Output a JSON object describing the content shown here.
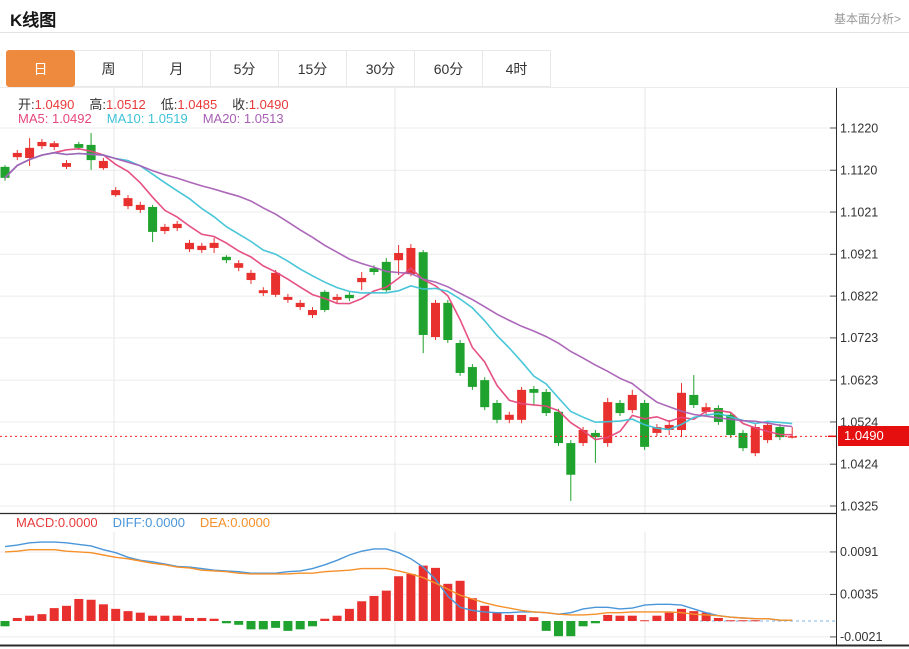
{
  "header": {
    "title": "K线图",
    "link_label": "基本面分析>"
  },
  "tabs": {
    "items": [
      "日",
      "周",
      "月",
      "5分",
      "15分",
      "30分",
      "60分",
      "4时"
    ],
    "active_index": 0
  },
  "main_legend": {
    "ohlc": [
      {
        "label": "开:",
        "value": "1.0490"
      },
      {
        "label": "高:",
        "value": "1.0512"
      },
      {
        "label": "低:",
        "value": "1.0485"
      },
      {
        "label": "收:",
        "value": "1.0490"
      }
    ],
    "ohlc_value_color": "#e83a3a",
    "ma": [
      {
        "label": "MA5:",
        "value": "1.0492",
        "color": "#e5487c"
      },
      {
        "label": "MA10:",
        "value": "1.0519",
        "color": "#3fc3d6"
      },
      {
        "label": "MA20:",
        "value": "1.0513",
        "color": "#a85fb5"
      }
    ]
  },
  "macd_legend": [
    {
      "label": "MACD:",
      "value": "0.0000",
      "color": "#e83a3a"
    },
    {
      "label": "DIFF:",
      "value": "0.0000",
      "color": "#4a96d9"
    },
    {
      "label": "DEA:",
      "value": "0.0000",
      "color": "#f5902a"
    }
  ],
  "price_tag": {
    "value": "1.0490"
  },
  "colors": {
    "up": "#e8312f",
    "down": "#1fa32e",
    "ma5": "#e5487c",
    "ma10": "#3fc3d6",
    "ma20": "#a85fb5",
    "diff": "#4a96d9",
    "dea": "#f5902a",
    "grid": "#ececec",
    "axis": "#2b2b2b",
    "price_line": "#ff2222",
    "price_tag_bg": "#e50f0f",
    "tab_active_bg": "#ee8a3d"
  },
  "chart_data": {
    "type": "candlestick+macd",
    "title": "K线图 (日K)",
    "main_panel": {
      "y_ticks": [
        "1.1220",
        "1.1120",
        "1.1021",
        "1.0921",
        "1.0822",
        "1.0723",
        "1.0623",
        "1.0524",
        "1.0424",
        "1.0325"
      ],
      "ylim": [
        1.0325,
        1.122
      ],
      "current_price": 1.049,
      "ma_periods": [
        5,
        10,
        20
      ],
      "candles_ohlc": [
        [
          1.1128,
          1.1132,
          1.1095,
          1.1102
        ],
        [
          1.1151,
          1.1168,
          1.1144,
          1.1161
        ],
        [
          1.1149,
          1.1196,
          1.113,
          1.1173
        ],
        [
          1.1177,
          1.1194,
          1.117,
          1.1187
        ],
        [
          1.1175,
          1.1189,
          1.1168,
          1.1184
        ],
        [
          1.1128,
          1.1144,
          1.1123,
          1.1137
        ],
        [
          1.1182,
          1.1187,
          1.1168,
          1.1173
        ],
        [
          1.118,
          1.1208,
          1.1121,
          1.1144
        ],
        [
          1.1125,
          1.1149,
          1.1121,
          1.1142
        ],
        [
          1.1061,
          1.108,
          1.1057,
          1.1073
        ],
        [
          1.1035,
          1.1061,
          1.1028,
          1.1054
        ],
        [
          1.1026,
          1.1045,
          1.1019,
          1.1038
        ],
        [
          1.1033,
          1.1038,
          1.095,
          1.0974
        ],
        [
          1.0976,
          1.0993,
          1.0969,
          1.0986
        ],
        [
          1.0983,
          1.1,
          1.0976,
          1.0993
        ],
        [
          1.0933,
          1.0955,
          1.0926,
          1.0948
        ],
        [
          1.0931,
          1.0948,
          1.0924,
          1.0941
        ],
        [
          1.0936,
          1.096,
          1.0924,
          1.0948
        ],
        [
          1.0915,
          1.0919,
          1.09,
          1.0907
        ],
        [
          1.0889,
          1.0907,
          1.0881,
          1.09
        ],
        [
          1.086,
          1.0884,
          1.0851,
          1.0877
        ],
        [
          1.0829,
          1.0843,
          1.0822,
          1.0836
        ],
        [
          1.0825,
          1.0884,
          1.082,
          1.0877
        ],
        [
          1.0813,
          1.0827,
          1.0806,
          1.082
        ],
        [
          1.0796,
          1.0813,
          1.0789,
          1.0806
        ],
        [
          1.0777,
          1.0796,
          1.077,
          1.0789
        ],
        [
          1.0832,
          1.0836,
          1.0784,
          1.0789
        ],
        [
          1.0813,
          1.0827,
          1.0806,
          1.082
        ],
        [
          1.0825,
          1.0832,
          1.081,
          1.0817
        ],
        [
          1.0855,
          1.0879,
          1.0836,
          1.0865
        ],
        [
          1.0888,
          1.0895,
          1.0872,
          1.0879
        ],
        [
          1.0903,
          1.0912,
          1.0832,
          1.0836
        ],
        [
          1.0907,
          1.0943,
          1.0872,
          1.0924
        ],
        [
          1.0874,
          1.0945,
          1.0869,
          1.0936
        ],
        [
          1.0926,
          1.0931,
          1.0687,
          1.073
        ],
        [
          1.0725,
          1.0813,
          1.0718,
          1.0806
        ],
        [
          1.0806,
          1.0813,
          1.0711,
          1.0718
        ],
        [
          1.0711,
          1.0718,
          1.0633,
          1.064
        ],
        [
          1.0654,
          1.0661,
          1.06,
          1.0607
        ],
        [
          1.0623,
          1.063,
          1.0552,
          1.0559
        ],
        [
          1.0569,
          1.0576,
          1.0521,
          1.0529
        ],
        [
          1.0529,
          1.0548,
          1.0521,
          1.0541
        ],
        [
          1.0529,
          1.0607,
          1.0521,
          1.06
        ],
        [
          1.0602,
          1.0609,
          1.0564,
          1.0593
        ],
        [
          1.0595,
          1.0602,
          1.0538,
          1.0545
        ],
        [
          1.0548,
          1.0555,
          1.0467,
          1.0474
        ],
        [
          1.0474,
          1.0481,
          1.0337,
          1.0399
        ],
        [
          1.0474,
          1.0512,
          1.0467,
          1.0505
        ],
        [
          1.0498,
          1.0505,
          1.0427,
          1.0488
        ],
        [
          1.0474,
          1.0581,
          1.0465,
          1.0571
        ],
        [
          1.0569,
          1.0576,
          1.0538,
          1.0545
        ],
        [
          1.0552,
          1.06,
          1.0545,
          1.0588
        ],
        [
          1.0569,
          1.0576,
          1.0458,
          1.0465
        ],
        [
          1.0498,
          1.0519,
          1.0491,
          1.0512
        ],
        [
          1.0505,
          1.0529,
          1.0493,
          1.0517
        ],
        [
          1.0505,
          1.0616,
          1.0488,
          1.0593
        ],
        [
          1.0588,
          1.0635,
          1.0557,
          1.0564
        ],
        [
          1.0548,
          1.0569,
          1.0541,
          1.0559
        ],
        [
          1.0557,
          1.0564,
          1.0517,
          1.0524
        ],
        [
          1.0541,
          1.0548,
          1.0486,
          1.0493
        ],
        [
          1.0498,
          1.0505,
          1.0455,
          1.0462
        ],
        [
          1.045,
          1.0519,
          1.0443,
          1.0512
        ],
        [
          1.0481,
          1.0524,
          1.0474,
          1.0517
        ],
        [
          1.0512,
          1.0519,
          1.0481,
          1.0488
        ],
        [
          1.049,
          1.0512,
          1.0485,
          1.049
        ]
      ]
    },
    "macd_panel": {
      "y_ticks": [
        "0.0091",
        "0.0035",
        "-0.0021"
      ],
      "histogram": [
        -0.0007,
        0.0004,
        0.0007,
        0.0009,
        0.0017,
        0.002,
        0.0029,
        0.0028,
        0.0022,
        0.0016,
        0.0013,
        0.0011,
        0.0007,
        0.0007,
        0.0007,
        0.0004,
        0.0004,
        0.0003,
        -0.0003,
        -0.0005,
        -0.0011,
        -0.0011,
        -0.0009,
        -0.0013,
        -0.0011,
        -0.0007,
        0.0003,
        0.0007,
        0.0016,
        0.0026,
        0.0033,
        0.004,
        0.0059,
        0.0062,
        0.0073,
        0.007,
        0.0049,
        0.0053,
        0.003,
        0.002,
        0.0011,
        0.0008,
        0.0008,
        0.0005,
        -0.0013,
        -0.002,
        -0.002,
        -0.0007,
        -0.0003,
        0.0008,
        0.0007,
        0.0007,
        0.0001,
        0.0007,
        0.0011,
        0.0016,
        0.0013,
        0.0011,
        0.0004,
        0.0001,
        0.0001,
        0.0001,
        0.0,
        0.0,
        0.0
      ],
      "diff": [
        0.0098,
        0.01,
        0.0103,
        0.0104,
        0.0104,
        0.0103,
        0.0101,
        0.0099,
        0.0094,
        0.009,
        0.0084,
        0.008,
        0.0078,
        0.0075,
        0.0072,
        0.0071,
        0.0069,
        0.0067,
        0.0066,
        0.0065,
        0.0063,
        0.0063,
        0.0063,
        0.0065,
        0.0066,
        0.0069,
        0.0074,
        0.008,
        0.0087,
        0.0092,
        0.0095,
        0.0095,
        0.009,
        0.0082,
        0.0071,
        0.0055,
        0.0033,
        0.0018,
        0.0014,
        0.0012,
        0.0011,
        0.0011,
        0.0012,
        0.0012,
        0.0011,
        0.0009,
        0.0011,
        0.0016,
        0.0018,
        0.0018,
        0.0016,
        0.0017,
        0.0021,
        0.0022,
        0.0022,
        0.0021,
        0.0016,
        0.0011,
        0.0007,
        0.0005,
        0.0004,
        0.0003,
        0.0003,
        0.0001,
        0.0001
      ],
      "dea": [
        0.0091,
        0.0092,
        0.0094,
        0.0094,
        0.0094,
        0.0092,
        0.0091,
        0.009,
        0.0087,
        0.0084,
        0.0082,
        0.0079,
        0.0076,
        0.0074,
        0.0071,
        0.007,
        0.0067,
        0.0066,
        0.0065,
        0.0063,
        0.0062,
        0.0062,
        0.0062,
        0.0062,
        0.0063,
        0.0063,
        0.0065,
        0.0066,
        0.0067,
        0.0069,
        0.0069,
        0.0069,
        0.0066,
        0.0062,
        0.0057,
        0.005,
        0.0042,
        0.0034,
        0.0029,
        0.0024,
        0.002,
        0.0017,
        0.0014,
        0.0012,
        0.0011,
        0.0009,
        0.0008,
        0.0008,
        0.0009,
        0.0011,
        0.0011,
        0.0012,
        0.0012,
        0.0012,
        0.0012,
        0.0011,
        0.0009,
        0.0008,
        0.0007,
        0.0005,
        0.0004,
        0.0003,
        0.0003,
        0.0001,
        0.0001
      ]
    }
  }
}
